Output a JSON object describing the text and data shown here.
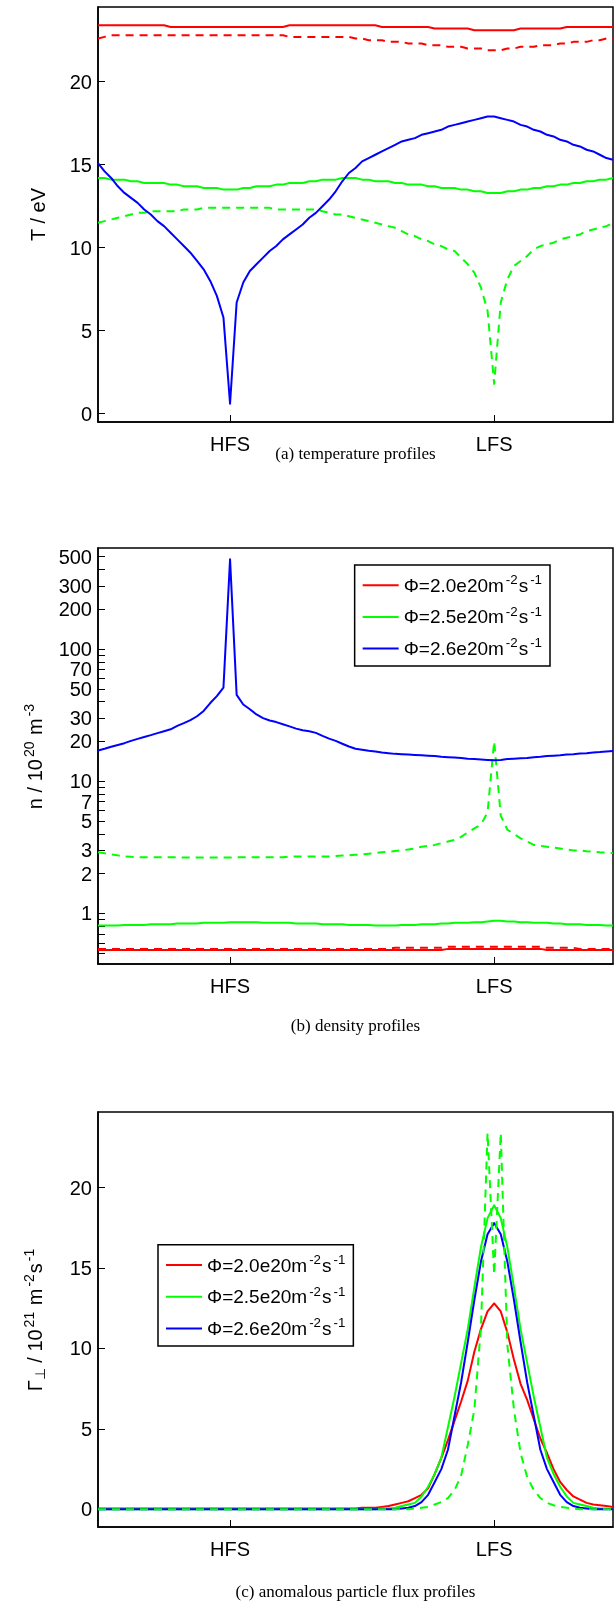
{
  "chart_data": [
    {
      "type": "line",
      "ylabel": "T / eV",
      "annotations": [
        "(a) temperature profiles"
      ],
      "categories": [
        null,
        null,
        null,
        null,
        null,
        null,
        null,
        null,
        null,
        null,
        null,
        null,
        null,
        null,
        null,
        null,
        null,
        null,
        null,
        null,
        "HFS",
        null,
        null,
        null,
        null,
        null,
        null,
        null,
        null,
        null,
        null,
        null,
        null,
        null,
        null,
        null,
        null,
        null,
        null,
        null,
        null,
        null,
        null,
        null,
        null,
        null,
        null,
        null,
        null,
        null,
        null,
        null,
        null,
        null,
        null,
        null,
        null,
        null,
        null,
        null,
        "LFS",
        null,
        null,
        null,
        null,
        null,
        null,
        null,
        null,
        null,
        null,
        null,
        null,
        null,
        null,
        null,
        null,
        null,
        null
      ],
      "ylim": [
        -0.5,
        24.5
      ],
      "yticks": [
        0,
        5,
        10,
        15,
        20
      ],
      "grid": false,
      "legend": false,
      "marker": "none",
      "series": [
        {
          "color": "#ff0000",
          "line_style": "solid",
          "values": [
            23.4,
            23.4,
            23.4,
            23.4,
            23.4,
            23.4,
            23.4,
            23.4,
            23.4,
            23.4,
            23.4,
            23.3,
            23.3,
            23.3,
            23.3,
            23.3,
            23.3,
            23.3,
            23.3,
            23.3,
            23.3,
            23.3,
            23.3,
            23.3,
            23.3,
            23.3,
            23.3,
            23.3,
            23.3,
            23.4,
            23.4,
            23.4,
            23.4,
            23.4,
            23.4,
            23.4,
            23.4,
            23.4,
            23.4,
            23.4,
            23.4,
            23.4,
            23.4,
            23.3,
            23.3,
            23.3,
            23.3,
            23.3,
            23.3,
            23.3,
            23.3,
            23.2,
            23.2,
            23.2,
            23.2,
            23.2,
            23.2,
            23.1,
            23.1,
            23.1,
            23.1,
            23.1,
            23.1,
            23.1,
            23.2,
            23.2,
            23.2,
            23.2,
            23.2,
            23.2,
            23.2,
            23.3,
            23.3,
            23.3,
            23.3,
            23.3,
            23.3,
            23.3,
            23.3
          ]
        },
        {
          "color": "#ff0000",
          "line_style": "dashed",
          "values": [
            22.6,
            22.7,
            22.8,
            22.8,
            22.8,
            22.8,
            22.8,
            22.8,
            22.8,
            22.8,
            22.8,
            22.8,
            22.8,
            22.8,
            22.8,
            22.8,
            22.8,
            22.8,
            22.8,
            22.8,
            22.8,
            22.8,
            22.8,
            22.8,
            22.8,
            22.8,
            22.8,
            22.8,
            22.8,
            22.7,
            22.7,
            22.7,
            22.7,
            22.7,
            22.7,
            22.7,
            22.7,
            22.7,
            22.7,
            22.6,
            22.6,
            22.5,
            22.5,
            22.5,
            22.4,
            22.4,
            22.4,
            22.3,
            22.3,
            22.3,
            22.2,
            22.2,
            22.2,
            22.1,
            22.1,
            22.1,
            22.0,
            22.0,
            22.0,
            21.9,
            21.9,
            21.9,
            22.0,
            22.0,
            22.1,
            22.1,
            22.1,
            22.2,
            22.2,
            22.2,
            22.3,
            22.3,
            22.4,
            22.4,
            22.4,
            22.5,
            22.5,
            22.6,
            22.6
          ]
        },
        {
          "color": "#00ff00",
          "line_style": "solid",
          "values": [
            14.2,
            14.2,
            14.1,
            14.1,
            14.1,
            14.0,
            14.0,
            13.9,
            13.9,
            13.9,
            13.9,
            13.8,
            13.8,
            13.7,
            13.7,
            13.7,
            13.6,
            13.6,
            13.6,
            13.5,
            13.5,
            13.5,
            13.6,
            13.6,
            13.7,
            13.7,
            13.7,
            13.8,
            13.8,
            13.9,
            13.9,
            13.9,
            14.0,
            14.0,
            14.1,
            14.1,
            14.1,
            14.2,
            14.2,
            14.2,
            14.1,
            14.1,
            14.0,
            14.0,
            14.0,
            13.9,
            13.9,
            13.8,
            13.8,
            13.8,
            13.7,
            13.7,
            13.6,
            13.6,
            13.6,
            13.5,
            13.5,
            13.4,
            13.4,
            13.3,
            13.3,
            13.3,
            13.4,
            13.4,
            13.5,
            13.5,
            13.6,
            13.6,
            13.7,
            13.7,
            13.8,
            13.8,
            13.9,
            13.9,
            14.0,
            14.0,
            14.1,
            14.1,
            14.2
          ]
        },
        {
          "color": "#00ff00",
          "line_style": "dashed",
          "values": [
            11.5,
            11.6,
            11.7,
            11.8,
            11.9,
            12.0,
            12.1,
            12.1,
            12.2,
            12.2,
            12.2,
            12.2,
            12.2,
            12.3,
            12.3,
            12.3,
            12.4,
            12.4,
            12.4,
            12.4,
            12.4,
            12.4,
            12.4,
            12.4,
            12.4,
            12.4,
            12.4,
            12.3,
            12.3,
            12.3,
            12.3,
            12.3,
            12.3,
            12.3,
            12.2,
            12.1,
            12.0,
            12.0,
            11.9,
            11.8,
            11.7,
            11.6,
            11.5,
            11.4,
            11.3,
            11.2,
            11.0,
            10.8,
            10.7,
            10.5,
            10.4,
            10.2,
            10.1,
            9.9,
            9.8,
            9.4,
            9.0,
            8.5,
            7.6,
            6.2,
            1.8,
            6.7,
            8.1,
            8.9,
            9.2,
            9.5,
            9.9,
            10.1,
            10.2,
            10.3,
            10.5,
            10.6,
            10.7,
            10.8,
            11.0,
            11.1,
            11.2,
            11.3,
            11.5
          ]
        },
        {
          "color": "#0000ff",
          "line_style": "solid",
          "values": [
            15.1,
            14.6,
            14.2,
            13.7,
            13.3,
            13.0,
            12.7,
            12.3,
            12.0,
            11.6,
            11.3,
            10.9,
            10.5,
            10.1,
            9.7,
            9.2,
            8.7,
            8.0,
            7.1,
            5.8,
            0.6,
            6.7,
            7.9,
            8.6,
            9.0,
            9.4,
            9.8,
            10.1,
            10.5,
            10.8,
            11.1,
            11.4,
            11.8,
            12.1,
            12.5,
            12.9,
            13.4,
            14.0,
            14.5,
            14.8,
            15.2,
            15.4,
            15.6,
            15.8,
            16.0,
            16.2,
            16.4,
            16.5,
            16.6,
            16.8,
            16.9,
            17.0,
            17.1,
            17.3,
            17.4,
            17.5,
            17.6,
            17.7,
            17.8,
            17.9,
            17.9,
            17.8,
            17.7,
            17.6,
            17.4,
            17.3,
            17.1,
            17.0,
            16.8,
            16.7,
            16.5,
            16.4,
            16.2,
            16.1,
            15.9,
            15.8,
            15.6,
            15.4,
            15.3
          ]
        }
      ]
    },
    {
      "type": "line",
      "ylabel": "n / 10$^{20}$ m$^{-3}$",
      "annotations": [
        "(b) density profiles"
      ],
      "categories": [
        null,
        null,
        null,
        null,
        null,
        null,
        null,
        null,
        null,
        null,
        null,
        null,
        null,
        null,
        null,
        null,
        null,
        null,
        null,
        null,
        "HFS",
        null,
        null,
        null,
        null,
        null,
        null,
        null,
        null,
        null,
        null,
        null,
        null,
        null,
        null,
        null,
        null,
        null,
        null,
        null,
        null,
        null,
        null,
        null,
        null,
        null,
        null,
        null,
        null,
        null,
        null,
        null,
        null,
        null,
        null,
        null,
        null,
        null,
        null,
        null,
        "LFS",
        null,
        null,
        null,
        null,
        null,
        null,
        null,
        null,
        null,
        null,
        null,
        null,
        null,
        null,
        null,
        null,
        null,
        null
      ],
      "ylim": [
        0.415,
        580
      ],
      "log": "y",
      "yticks": [
        {
          "value": 0.5,
          "label": null
        },
        {
          "value": 0.6,
          "label": null
        },
        {
          "value": 0.7,
          "label": null
        },
        {
          "value": 0.8,
          "label": null
        },
        {
          "value": 0.9,
          "label": null
        },
        1,
        2,
        3,
        {
          "value": 4,
          "label": null
        },
        5,
        {
          "value": 6,
          "label": null
        },
        7,
        {
          "value": 8,
          "label": null
        },
        {
          "value": 9,
          "label": null
        },
        10,
        20,
        30,
        {
          "value": 40,
          "label": null
        },
        50,
        {
          "value": 60,
          "label": null
        },
        70,
        {
          "value": 80,
          "label": null
        },
        {
          "value": 90,
          "label": null
        },
        100,
        200,
        300,
        {
          "value": 400,
          "label": null
        },
        500
      ],
      "grid": false,
      "legend": "top right",
      "marker": "none",
      "series": [
        {
          "name": "Φ=2.0e20m$^{-2}$s$^{-1}$",
          "color": "#ff0000",
          "line_style": "solid",
          "values": [
            0.53,
            0.53,
            0.53,
            0.53,
            0.53,
            0.53,
            0.53,
            0.53,
            0.53,
            0.53,
            0.53,
            0.53,
            0.53,
            0.53,
            0.53,
            0.53,
            0.53,
            0.53,
            0.53,
            0.53,
            0.53,
            0.53,
            0.53,
            0.53,
            0.53,
            0.53,
            0.53,
            0.53,
            0.53,
            0.53,
            0.53,
            0.53,
            0.53,
            0.53,
            0.53,
            0.53,
            0.53,
            0.53,
            0.53,
            0.53,
            0.53,
            0.53,
            0.53,
            0.53,
            0.53,
            0.53,
            0.53,
            0.53,
            0.53,
            0.53,
            0.53,
            0.53,
            0.53,
            0.54,
            0.54,
            0.54,
            0.54,
            0.54,
            0.54,
            0.54,
            0.54,
            0.54,
            0.54,
            0.54,
            0.54,
            0.54,
            0.54,
            0.54,
            0.53,
            0.53,
            0.53,
            0.53,
            0.53,
            0.53,
            0.53,
            0.53,
            0.53,
            0.53,
            0.53
          ]
        },
        {
          "color": "#ff0000",
          "line_style": "dashed",
          "values": [
            0.54,
            0.54,
            0.54,
            0.54,
            0.54,
            0.54,
            0.54,
            0.54,
            0.54,
            0.54,
            0.54,
            0.54,
            0.54,
            0.54,
            0.54,
            0.54,
            0.54,
            0.54,
            0.54,
            0.54,
            0.54,
            0.54,
            0.54,
            0.54,
            0.54,
            0.54,
            0.54,
            0.54,
            0.54,
            0.54,
            0.54,
            0.54,
            0.54,
            0.54,
            0.54,
            0.54,
            0.54,
            0.54,
            0.54,
            0.54,
            0.54,
            0.54,
            0.54,
            0.54,
            0.54,
            0.55,
            0.55,
            0.55,
            0.55,
            0.55,
            0.55,
            0.55,
            0.55,
            0.56,
            0.56,
            0.56,
            0.56,
            0.56,
            0.56,
            0.56,
            0.56,
            0.56,
            0.56,
            0.56,
            0.56,
            0.56,
            0.56,
            0.56,
            0.55,
            0.55,
            0.55,
            0.55,
            0.55,
            0.54,
            0.54,
            0.54,
            0.54,
            0.54,
            0.54
          ]
        },
        {
          "name": "Φ=2.5e20m$^{-2}$s$^{-1}$",
          "color": "#00ff00",
          "line_style": "solid",
          "values": [
            0.81,
            0.81,
            0.81,
            0.81,
            0.82,
            0.82,
            0.82,
            0.82,
            0.83,
            0.83,
            0.83,
            0.83,
            0.84,
            0.84,
            0.84,
            0.84,
            0.85,
            0.85,
            0.85,
            0.85,
            0.86,
            0.86,
            0.86,
            0.86,
            0.86,
            0.85,
            0.85,
            0.85,
            0.85,
            0.85,
            0.84,
            0.84,
            0.84,
            0.84,
            0.83,
            0.83,
            0.83,
            0.83,
            0.82,
            0.82,
            0.82,
            0.82,
            0.81,
            0.81,
            0.81,
            0.81,
            0.82,
            0.82,
            0.82,
            0.83,
            0.83,
            0.83,
            0.84,
            0.84,
            0.85,
            0.85,
            0.85,
            0.86,
            0.86,
            0.87,
            0.88,
            0.88,
            0.87,
            0.87,
            0.86,
            0.86,
            0.85,
            0.85,
            0.85,
            0.84,
            0.84,
            0.83,
            0.83,
            0.83,
            0.82,
            0.82,
            0.82,
            0.81,
            0.81
          ]
        },
        {
          "color": "#00ff00",
          "line_style": "dashed",
          "values": [
            2.9,
            2.85,
            2.8,
            2.75,
            2.7,
            2.68,
            2.67,
            2.66,
            2.66,
            2.66,
            2.66,
            2.66,
            2.66,
            2.65,
            2.65,
            2.65,
            2.65,
            2.65,
            2.65,
            2.65,
            2.65,
            2.66,
            2.66,
            2.66,
            2.66,
            2.66,
            2.66,
            2.66,
            2.66,
            2.7,
            2.7,
            2.7,
            2.7,
            2.7,
            2.7,
            2.7,
            2.72,
            2.74,
            2.76,
            2.78,
            2.8,
            2.83,
            2.86,
            2.9,
            2.93,
            2.97,
            3.0,
            3.05,
            3.1,
            3.2,
            3.25,
            3.3,
            3.4,
            3.5,
            3.6,
            3.8,
            4.1,
            4.4,
            4.7,
            5.8,
            20,
            5.5,
            4.3,
            4.0,
            3.7,
            3.5,
            3.3,
            3.25,
            3.2,
            3.15,
            3.1,
            3.05,
            3.0,
            3.0,
            2.95,
            2.93,
            2.9,
            2.88,
            2.86
          ]
        },
        {
          "name": "Φ=2.6e20m$^{-2}$s$^{-1}$",
          "color": "#0000ff",
          "line_style": "solid",
          "values": [
            17.1,
            17.6,
            18.2,
            18.8,
            19.4,
            20.2,
            20.9,
            21.6,
            22.3,
            23.1,
            23.9,
            24.7,
            26.2,
            27.5,
            29,
            31,
            34,
            39,
            44,
            51,
            476,
            45,
            38,
            35,
            32,
            30,
            28.8,
            28,
            27,
            26,
            25,
            24.3,
            23.9,
            23.2,
            22,
            21,
            20.2,
            19.2,
            18.3,
            17.6,
            17.3,
            17.0,
            16.8,
            16.5,
            16.3,
            16.1,
            16.0,
            15.9,
            15.8,
            15.7,
            15.6,
            15.5,
            15.3,
            15.2,
            15.1,
            15.0,
            14.8,
            14.7,
            14.6,
            14.5,
            14.4,
            14.5,
            14.7,
            14.8,
            14.9,
            15.0,
            15.2,
            15.3,
            15.5,
            15.6,
            15.7,
            15.9,
            16.0,
            16.2,
            16.3,
            16.5,
            16.6,
            16.8,
            16.9
          ]
        }
      ]
    },
    {
      "type": "line",
      "ylabel": "Γ$_{⊥}$ / 10$^{21}$ m$^{-2}$s$^{-1}$",
      "annotations": [
        "(c) anomalous particle flux profiles"
      ],
      "categories": [
        null,
        null,
        null,
        null,
        null,
        null,
        null,
        null,
        null,
        null,
        null,
        null,
        null,
        null,
        null,
        null,
        null,
        null,
        null,
        null,
        "HFS",
        null,
        null,
        null,
        null,
        null,
        null,
        null,
        null,
        null,
        null,
        null,
        null,
        null,
        null,
        null,
        null,
        null,
        null,
        null,
        null,
        null,
        null,
        null,
        null,
        null,
        null,
        null,
        null,
        null,
        null,
        null,
        null,
        null,
        null,
        null,
        null,
        null,
        null,
        null,
        "LFS",
        null,
        null,
        null,
        null,
        null,
        null,
        null,
        null,
        null,
        null,
        null,
        null,
        null,
        null,
        null,
        null,
        null,
        null
      ],
      "ylim": [
        -1.1,
        24.7
      ],
      "yticks": [
        0,
        5,
        10,
        15,
        20
      ],
      "grid": false,
      "legend": "left",
      "marker": "none",
      "series": [
        {
          "name": "Φ=2.0e20m$^{-2}$s$^{-1}$",
          "color": "#ff0000",
          "line_style": "solid",
          "values": [
            0.05,
            0.05,
            0.05,
            0.05,
            0.05,
            0.05,
            0.05,
            0.05,
            0.05,
            0.05,
            0.05,
            0.05,
            0.05,
            0.05,
            0.05,
            0.05,
            0.05,
            0.05,
            0.05,
            0.05,
            0.05,
            0.05,
            0.05,
            0.05,
            0.05,
            0.05,
            0.05,
            0.05,
            0.05,
            0.05,
            0.05,
            0.05,
            0.05,
            0.05,
            0.05,
            0.05,
            0.05,
            0.05,
            0.05,
            0.05,
            0.1,
            0.1,
            0.1,
            0.15,
            0.2,
            0.3,
            0.4,
            0.5,
            0.7,
            0.9,
            1.3,
            2.2,
            3.2,
            4.3,
            5.5,
            6.7,
            8.0,
            9.8,
            11.2,
            12.3,
            12.8,
            12.3,
            11.0,
            9.3,
            7.8,
            6.8,
            5.6,
            4.4,
            3.5,
            2.5,
            1.7,
            1.2,
            0.8,
            0.6,
            0.4,
            0.3,
            0.25,
            0.2,
            0.15
          ]
        },
        {
          "name": "Φ=2.5e20m$^{-2}$s$^{-1}$",
          "color": "#00ff00",
          "line_style": "solid",
          "values": [
            0,
            0,
            0,
            0,
            0,
            0,
            0,
            0,
            0,
            0,
            0,
            0,
            0,
            0,
            0,
            0,
            0,
            0,
            0,
            0,
            0,
            0,
            0,
            0,
            0,
            0,
            0,
            0,
            0,
            0,
            0,
            0,
            0,
            0,
            0,
            0,
            0,
            0,
            0,
            0,
            0,
            0,
            0,
            0.05,
            0.05,
            0.1,
            0.2,
            0.3,
            0.4,
            0.8,
            1.4,
            2.2,
            3.2,
            5.1,
            7.0,
            9.1,
            11.2,
            13.8,
            16.3,
            18.1,
            18.9,
            18.1,
            16.3,
            13.8,
            11.2,
            9.1,
            7.0,
            5.1,
            3.2,
            2.2,
            1.4,
            0.8,
            0.4,
            0.3,
            0.2,
            0.1,
            0.05,
            0.05,
            0
          ]
        },
        {
          "name": "Φ=2.6e20m$^{-2}$s$^{-1}$",
          "color": "#0000ff",
          "line_style": "solid",
          "values": [
            0,
            0,
            0,
            0,
            0,
            0,
            0,
            0,
            0,
            0,
            0,
            0,
            0,
            0,
            0,
            0,
            0,
            0,
            0,
            0,
            0,
            0,
            0,
            0,
            0,
            0,
            0,
            0,
            0,
            0,
            0,
            0,
            0,
            0,
            0,
            0,
            0,
            0,
            0,
            0,
            0,
            0,
            0,
            0,
            0,
            0,
            0.05,
            0.1,
            0.2,
            0.45,
            0.9,
            1.7,
            2.5,
            3.7,
            5.8,
            7.9,
            10.4,
            13.0,
            15.4,
            17.1,
            17.8,
            17.1,
            15.4,
            13.0,
            10.4,
            7.9,
            5.8,
            3.7,
            2.5,
            1.7,
            0.9,
            0.45,
            0.2,
            0.1,
            0.05,
            0,
            0,
            0,
            0
          ]
        },
        {
          "color": "#00ff00",
          "line_style": "dashed",
          "values": [
            0,
            0,
            0,
            0,
            0,
            0,
            0,
            0,
            0,
            0,
            0,
            0,
            0,
            0,
            0,
            0,
            0,
            0,
            0,
            0,
            0,
            0,
            0,
            0,
            0,
            0,
            0,
            0,
            0,
            0,
            0,
            0,
            0,
            0,
            0,
            0,
            0,
            0,
            0,
            0,
            0,
            0,
            0,
            0,
            0,
            0,
            0,
            0,
            0.05,
            0.1,
            0.15,
            0.3,
            0.45,
            0.7,
            1.2,
            2.1,
            4.0,
            6.2,
            11.3,
            23.4,
            14.6,
            23.4,
            10.2,
            6.2,
            3.5,
            2.0,
            1.2,
            0.7,
            0.4,
            0.25,
            0.15,
            0.1,
            0.05,
            0,
            0,
            0,
            0,
            0,
            0
          ]
        }
      ]
    }
  ]
}
